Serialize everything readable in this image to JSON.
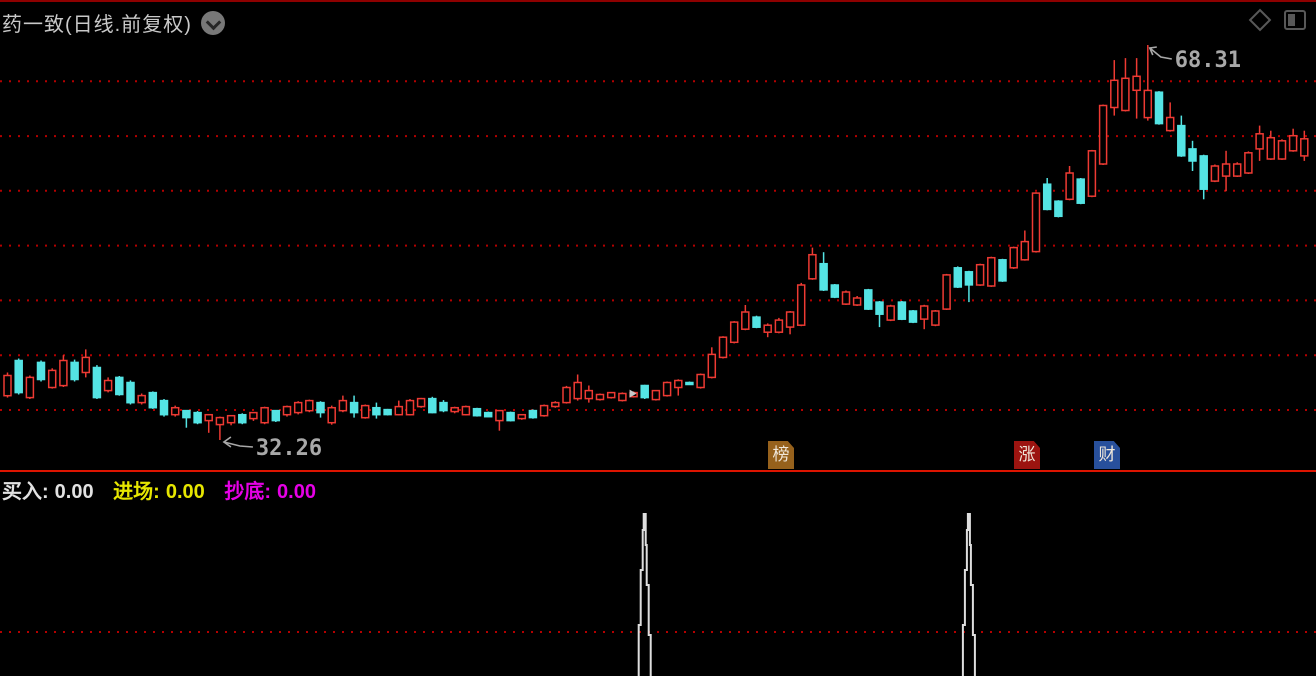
{
  "window": {
    "title": "药一致(日线.前复权)"
  },
  "icons": {
    "title_dropdown": "chevron-down-in-gray-circle",
    "top_right": [
      "diamond-outline",
      "split-panel-toggle"
    ]
  },
  "annotations": {
    "high": {
      "text": "68.31",
      "color": "#a8a8a8"
    },
    "low": {
      "text": "32.26",
      "color": "#a8a8a8"
    }
  },
  "badges": [
    {
      "label": "榜",
      "bg": "#96611c"
    },
    {
      "label": "涨",
      "bg": "#9c1410"
    },
    {
      "label": "财",
      "bg": "#28509c"
    }
  ],
  "indicator_panel": {
    "items": [
      {
        "label": "买入:",
        "value": "0.00",
        "color": "#e2e2e2"
      },
      {
        "label": "进场:",
        "value": "0.00",
        "color": "#e6e600"
      },
      {
        "label": "抄底:",
        "value": "0.00",
        "color": "#e600e6"
      }
    ]
  },
  "chart_data": [
    {
      "type": "candlestick",
      "title": "药一致",
      "period": "日线",
      "adjustment": "前复权",
      "price_high": 68.31,
      "price_low": 32.26,
      "gridline_prices": [
        65,
        60,
        55,
        50,
        45,
        40,
        35
      ],
      "grid_color": "#b40000",
      "up_color": "#ee3a33",
      "down_color": "#54e4e4",
      "annotation_color": "#a8a8a8",
      "marker": {
        "type": "small-gray-arrow",
        "candle_index": 56
      },
      "candles": [
        [
          36.31,
          38.42,
          36.13,
          38.15
        ],
        [
          39.52,
          39.7,
          36.41,
          36.59
        ],
        [
          36.13,
          38.15,
          36.0,
          37.97
        ],
        [
          39.34,
          39.52,
          37.6,
          37.78
        ],
        [
          37.05,
          38.8,
          36.95,
          38.61
        ],
        [
          37.23,
          40.0,
          37.1,
          39.52
        ],
        [
          39.34,
          39.6,
          37.6,
          37.78
        ],
        [
          38.42,
          40.53,
          37.97,
          39.8
        ],
        [
          38.88,
          39.1,
          36.0,
          36.13
        ],
        [
          36.77,
          37.97,
          36.6,
          37.69
        ],
        [
          37.97,
          38.1,
          36.3,
          36.41
        ],
        [
          37.51,
          37.7,
          35.5,
          35.67
        ],
        [
          35.67,
          36.5,
          35.5,
          36.31
        ],
        [
          36.59,
          36.7,
          35.1,
          35.21
        ],
        [
          35.86,
          36.0,
          34.4,
          34.57
        ],
        [
          34.57,
          35.4,
          34.4,
          35.21
        ],
        [
          34.94,
          35.0,
          33.38,
          34.3
        ],
        [
          34.76,
          34.9,
          33.7,
          33.84
        ],
        [
          34.03,
          34.6,
          32.92,
          34.57
        ],
        [
          33.66,
          34.4,
          32.26,
          34.3
        ],
        [
          33.84,
          34.5,
          33.6,
          34.48
        ],
        [
          34.57,
          34.7,
          33.7,
          33.84
        ],
        [
          34.21,
          34.8,
          34.0,
          34.76
        ],
        [
          33.84,
          35.3,
          33.7,
          35.21
        ],
        [
          34.94,
          35.0,
          33.9,
          34.03
        ],
        [
          34.57,
          35.4,
          34.4,
          35.31
        ],
        [
          34.76,
          35.8,
          34.6,
          35.67
        ],
        [
          34.94,
          35.95,
          34.8,
          35.86
        ],
        [
          35.67,
          35.8,
          34.3,
          34.76
        ],
        [
          33.84,
          35.4,
          33.66,
          35.21
        ],
        [
          34.94,
          36.31,
          34.8,
          35.86
        ],
        [
          35.67,
          36.31,
          34.3,
          34.76
        ],
        [
          34.3,
          35.5,
          34.2,
          35.4
        ],
        [
          35.21,
          35.67,
          34.21,
          34.57
        ],
        [
          35.03,
          35.1,
          34.5,
          34.57
        ],
        [
          34.57,
          35.86,
          34.5,
          35.31
        ],
        [
          34.57,
          36.0,
          34.5,
          35.86
        ],
        [
          35.31,
          36.1,
          35.2,
          36.04
        ],
        [
          36.04,
          36.2,
          34.7,
          34.76
        ],
        [
          35.67,
          35.9,
          34.8,
          34.94
        ],
        [
          34.85,
          35.3,
          34.7,
          35.21
        ],
        [
          34.57,
          35.4,
          34.5,
          35.31
        ],
        [
          35.12,
          35.2,
          34.4,
          34.48
        ],
        [
          34.76,
          34.85,
          34.35,
          34.39
        ],
        [
          34.03,
          35.0,
          33.11,
          34.94
        ],
        [
          34.76,
          34.85,
          33.95,
          34.03
        ],
        [
          34.21,
          34.6,
          34.1,
          34.57
        ],
        [
          34.94,
          35.05,
          34.2,
          34.3
        ],
        [
          34.48,
          35.5,
          34.39,
          35.4
        ],
        [
          35.31,
          35.8,
          35.2,
          35.67
        ],
        [
          35.67,
          37.2,
          35.58,
          37.05
        ],
        [
          36.04,
          38.24,
          35.86,
          37.51
        ],
        [
          36.04,
          37.23,
          35.67,
          36.77
        ],
        [
          35.95,
          36.5,
          35.86,
          36.41
        ],
        [
          36.13,
          36.6,
          36.04,
          36.59
        ],
        [
          35.86,
          36.6,
          35.77,
          36.5
        ],
        [
          36.22,
          36.7,
          36.13,
          36.59
        ],
        [
          37.23,
          37.3,
          36.0,
          36.13
        ],
        [
          35.95,
          36.8,
          35.86,
          36.77
        ],
        [
          36.31,
          37.6,
          36.22,
          37.51
        ],
        [
          37.05,
          37.8,
          36.31,
          37.69
        ],
        [
          37.51,
          37.6,
          37.32,
          37.42
        ],
        [
          37.05,
          38.33,
          36.95,
          38.24
        ],
        [
          37.97,
          40.72,
          37.88,
          40.07
        ],
        [
          39.8,
          41.73,
          39.7,
          41.64
        ],
        [
          41.18,
          43.11,
          41.08,
          43.02
        ],
        [
          42.37,
          44.58,
          42.28,
          43.94
        ],
        [
          43.48,
          43.6,
          42.46,
          42.56
        ],
        [
          42.1,
          42.9,
          41.64,
          42.74
        ],
        [
          42.1,
          43.4,
          42.0,
          43.2
        ],
        [
          42.56,
          44.03,
          41.91,
          43.94
        ],
        [
          42.74,
          46.6,
          42.65,
          46.41
        ],
        [
          46.97,
          49.82,
          46.88,
          49.17
        ],
        [
          48.35,
          49.4,
          45.86,
          45.96
        ],
        [
          46.41,
          46.5,
          45.21,
          45.31
        ],
        [
          44.67,
          45.9,
          44.58,
          45.77
        ],
        [
          44.58,
          45.4,
          44.49,
          45.22
        ],
        [
          45.96,
          46.05,
          44.12,
          44.21
        ],
        [
          44.85,
          44.95,
          42.56,
          43.75
        ],
        [
          43.2,
          44.6,
          43.11,
          44.49
        ],
        [
          44.85,
          44.95,
          43.2,
          43.29
        ],
        [
          44.03,
          44.12,
          42.93,
          43.02
        ],
        [
          43.29,
          44.6,
          42.37,
          44.49
        ],
        [
          42.74,
          44.12,
          42.65,
          44.03
        ],
        [
          44.21,
          47.42,
          44.12,
          47.33
        ],
        [
          47.98,
          48.1,
          46.13,
          46.23
        ],
        [
          47.61,
          47.7,
          44.85,
          46.41
        ],
        [
          46.41,
          48.35,
          46.32,
          48.26
        ],
        [
          46.32,
          48.99,
          46.23,
          48.9
        ],
        [
          48.71,
          48.8,
          46.69,
          46.78
        ],
        [
          47.98,
          49.91,
          47.88,
          49.82
        ],
        [
          48.71,
          51.38,
          48.62,
          50.37
        ],
        [
          49.45,
          54.88,
          49.36,
          54.79
        ],
        [
          55.61,
          56.17,
          53.22,
          53.31
        ],
        [
          54.05,
          54.15,
          52.58,
          52.67
        ],
        [
          54.23,
          57.27,
          54.14,
          56.63
        ],
        [
          56.07,
          56.17,
          53.78,
          53.87
        ],
        [
          54.51,
          58.74,
          54.42,
          58.65
        ],
        [
          57.45,
          62.88,
          57.36,
          62.79
        ],
        [
          62.61,
          66.93,
          61.87,
          65.09
        ],
        [
          62.33,
          67.11,
          62.24,
          65.27
        ],
        [
          64.17,
          67.11,
          61.59,
          65.45
        ],
        [
          61.69,
          68.31,
          61.41,
          64.17
        ],
        [
          64.0,
          64.1,
          61.04,
          61.13
        ],
        [
          60.49,
          63.07,
          60.4,
          61.69
        ],
        [
          60.95,
          61.87,
          58.1,
          58.19
        ],
        [
          58.83,
          59.57,
          56.81,
          57.73
        ],
        [
          58.19,
          58.3,
          54.23,
          55.15
        ],
        [
          55.89,
          57.4,
          55.8,
          57.27
        ],
        [
          56.35,
          58.65,
          54.97,
          57.45
        ],
        [
          56.35,
          57.6,
          56.26,
          57.45
        ],
        [
          56.63,
          58.6,
          56.54,
          58.47
        ],
        [
          58.83,
          60.95,
          57.73,
          60.21
        ],
        [
          57.91,
          60.49,
          57.82,
          59.85
        ],
        [
          57.91,
          59.7,
          57.82,
          59.57
        ],
        [
          58.65,
          60.67,
          58.56,
          60.03
        ],
        [
          58.19,
          60.49,
          57.73,
          59.75
        ]
      ]
    },
    {
      "type": "line",
      "name": "买入/进场/抄底 signal panel",
      "series": [
        {
          "name": "买入",
          "current_value": 0.0
        },
        {
          "name": "进场",
          "current_value": 0.0
        },
        {
          "name": "抄底",
          "current_value": 0.0
        }
      ],
      "spike_candle_indices": [
        57,
        86
      ],
      "line_color": "#dedede",
      "grid_color": "#b40000"
    }
  ]
}
